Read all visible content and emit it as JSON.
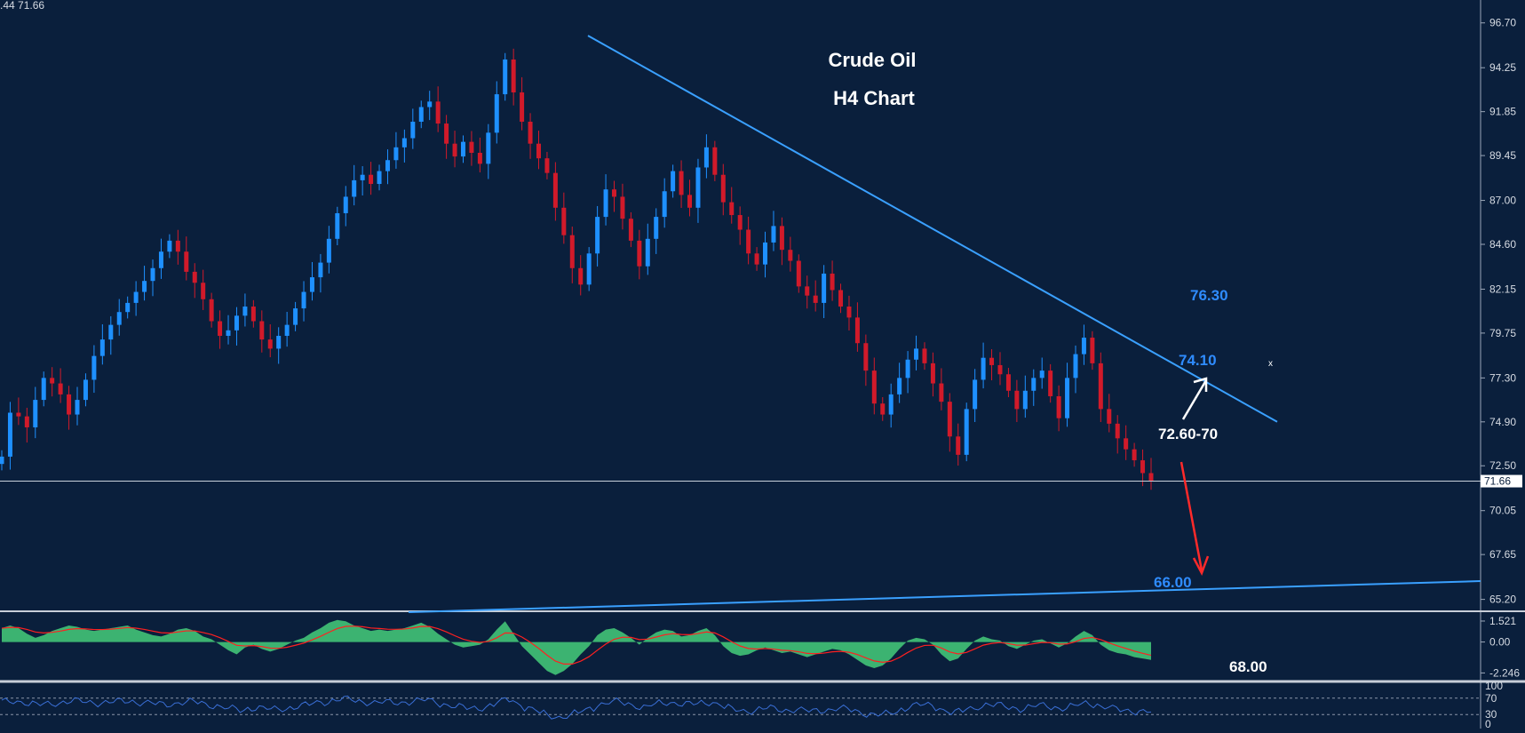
{
  "header": {
    "ohlc_text": ".44 71.66"
  },
  "chart_data": {
    "type": "candlestick",
    "title": "Crude Oil",
    "subtitle": "H4 Chart",
    "price_axis": {
      "ticks": [
        "96.70",
        "94.25",
        "91.85",
        "89.45",
        "87.00",
        "84.60",
        "82.15",
        "79.75",
        "77.30",
        "74.90",
        "72.50",
        "70.05",
        "67.65",
        "65.20"
      ],
      "range": [
        64.55,
        97.95
      ]
    },
    "current_price": 71.66,
    "current_price_label": "71.66",
    "close_series": [
      73.0,
      75.4,
      75.2,
      74.6,
      76.1,
      77.3,
      77.0,
      76.4,
      75.3,
      76.1,
      77.2,
      78.5,
      79.4,
      80.2,
      80.9,
      81.4,
      82.0,
      82.6,
      83.3,
      84.2,
      84.8,
      84.2,
      83.1,
      82.5,
      81.6,
      80.4,
      79.6,
      79.9,
      80.7,
      81.2,
      80.4,
      79.4,
      78.9,
      79.6,
      80.2,
      81.1,
      82.0,
      82.8,
      83.6,
      84.9,
      86.3,
      87.2,
      88.1,
      88.4,
      87.9,
      88.6,
      89.2,
      89.9,
      90.4,
      91.3,
      92.1,
      92.4,
      91.2,
      90.1,
      89.4,
      90.2,
      89.6,
      89.0,
      90.7,
      92.8,
      94.7,
      92.9,
      91.3,
      90.1,
      89.3,
      88.5,
      86.6,
      85.1,
      83.3,
      82.4,
      84.1,
      86.1,
      87.6,
      87.2,
      86.0,
      84.8,
      83.4,
      84.9,
      86.1,
      87.5,
      88.6,
      87.3,
      86.6,
      88.8,
      89.9,
      88.4,
      86.9,
      86.2,
      85.4,
      84.1,
      83.5,
      84.7,
      85.6,
      84.3,
      83.7,
      82.3,
      81.8,
      81.4,
      83.0,
      82.1,
      81.2,
      80.6,
      79.2,
      77.7,
      75.9,
      75.3,
      76.4,
      77.3,
      78.3,
      78.9,
      78.1,
      77.0,
      76.0,
      74.1,
      73.1,
      75.6,
      77.2,
      78.4,
      78.0,
      77.5,
      76.6,
      75.6,
      76.6,
      77.3,
      77.7,
      76.3,
      75.1,
      77.3,
      78.6,
      79.5,
      78.1,
      75.6,
      74.8,
      74.0,
      73.4,
      72.8,
      72.1,
      71.66
    ],
    "trendlines": [
      {
        "name": "descending-resistance",
        "points": [
          [
            0,
            96.0
          ],
          [
            1,
            74.9
          ]
        ]
      },
      {
        "name": "support-line",
        "points": [
          [
            0,
            64.5
          ],
          [
            1,
            66.2
          ]
        ]
      }
    ],
    "levels": [
      {
        "label": "76.30",
        "value": 76.3,
        "color": "#2f8cff"
      },
      {
        "label": "74.10",
        "value": 74.1,
        "color": "#2f8cff"
      },
      {
        "label": "66.00",
        "value": 66.0,
        "color": "#2f8cff"
      },
      {
        "label": "72.60-70",
        "value": 72.65,
        "color": "#ffffff"
      }
    ],
    "arrows": [
      {
        "name": "up-arrow",
        "color": "#ffffff",
        "from": 73.0,
        "to": 76.8
      },
      {
        "name": "down-arrow",
        "color": "#ff2a2a",
        "from": 71.6,
        "to": 66.5
      }
    ],
    "macd": {
      "ticks": [
        "1.521",
        "0.00",
        "-2.246"
      ],
      "range": [
        -2.8,
        2.1
      ],
      "histogram": [
        1.0,
        1.2,
        1.0,
        0.6,
        0.3,
        0.5,
        0.8,
        1.0,
        1.2,
        1.1,
        0.9,
        0.8,
        0.9,
        1.0,
        1.1,
        1.2,
        0.9,
        0.7,
        0.5,
        0.4,
        0.6,
        0.9,
        1.0,
        0.8,
        0.4,
        0.2,
        -0.2,
        -0.6,
        -0.9,
        -0.4,
        -0.2,
        -0.5,
        -0.7,
        -0.5,
        -0.2,
        0.1,
        0.3,
        0.7,
        1.0,
        1.4,
        1.6,
        1.5,
        1.2,
        1.0,
        0.8,
        0.9,
        0.8,
        0.9,
        1.0,
        1.2,
        1.4,
        1.1,
        0.6,
        0.2,
        -0.2,
        -0.4,
        -0.3,
        -0.2,
        0.2,
        0.9,
        1.5,
        0.6,
        -0.3,
        -0.9,
        -1.5,
        -2.1,
        -2.4,
        -2.1,
        -1.6,
        -0.9,
        -0.3,
        0.5,
        0.9,
        1.0,
        0.7,
        0.3,
        -0.2,
        0.3,
        0.7,
        0.9,
        0.8,
        0.4,
        0.5,
        0.8,
        1.0,
        0.5,
        -0.3,
        -0.8,
        -1.0,
        -0.9,
        -0.6,
        -0.4,
        -0.6,
        -0.8,
        -0.7,
        -0.9,
        -1.1,
        -0.9,
        -0.7,
        -0.5,
        -0.6,
        -0.9,
        -1.3,
        -1.7,
        -1.9,
        -1.7,
        -1.2,
        -0.5,
        0.1,
        0.3,
        0.2,
        -0.2,
        -0.9,
        -1.4,
        -1.2,
        -0.5,
        0.1,
        0.4,
        0.2,
        0.1,
        -0.3,
        -0.5,
        -0.2,
        0.1,
        0.2,
        -0.1,
        -0.4,
        -0.1,
        0.4,
        0.8,
        0.5,
        -0.2,
        -0.6,
        -0.8,
        -0.9,
        -1.1,
        -1.2,
        -1.3
      ],
      "signal_label": "68.00"
    },
    "rsi": {
      "ticks": [
        "100",
        "70",
        "30",
        "0"
      ],
      "levels": [
        70,
        30
      ]
    },
    "colors": {
      "background": "#0a1f3c",
      "bull": "#1e90ff",
      "bear": "#d11a2a",
      "trendline": "#3aa0ff",
      "macd_hist": "#3cb371",
      "macd_signal": "#ff2020",
      "rsi_line": "#3a6fd6"
    }
  }
}
